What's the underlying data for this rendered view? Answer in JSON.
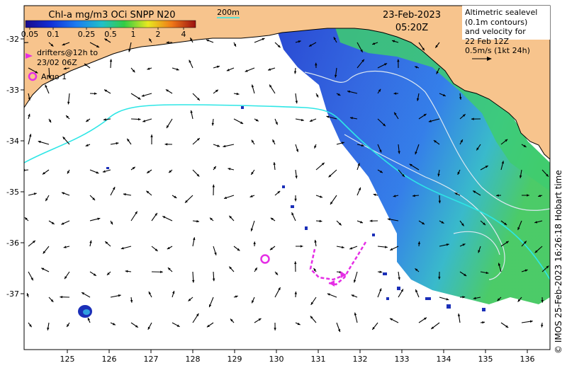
{
  "colorbar": {
    "title": "Chl-a mg/m3 OCi SNPP N20",
    "ticks": [
      "0.05",
      "0.1",
      "0.25",
      "0.5",
      "1",
      "2",
      "4"
    ]
  },
  "isobath_label": "200m",
  "date": "23-Feb-2023",
  "time": "05:20Z",
  "info_lines": [
    "Altimetric sealevel",
    "(0.1m contours)",
    "and velocity for",
    "22 Feb 12Z",
    "0.5m/s (1kt 24h)"
  ],
  "drifters_label_lines": [
    "drifters@12h to",
    "23/02 06Z"
  ],
  "argo_label": "Argo 1",
  "credit": "© IMOS 25-Feb-2023 16:26:18 Hobart time",
  "axes": {
    "x_ticks": [
      "125",
      "126",
      "127",
      "128",
      "129",
      "130",
      "131",
      "132",
      "133",
      "134",
      "135",
      "136"
    ],
    "y_ticks": [
      "-32",
      "-33",
      "-34",
      "-35",
      "-36",
      "-37"
    ]
  },
  "colors": {
    "land": "#f7c48d",
    "ocean": "#ffffff",
    "shelf_edge": "#2ee6e6",
    "drifters": "#e52ee5",
    "argo": "#e52ee5",
    "arrows": "#000000"
  }
}
